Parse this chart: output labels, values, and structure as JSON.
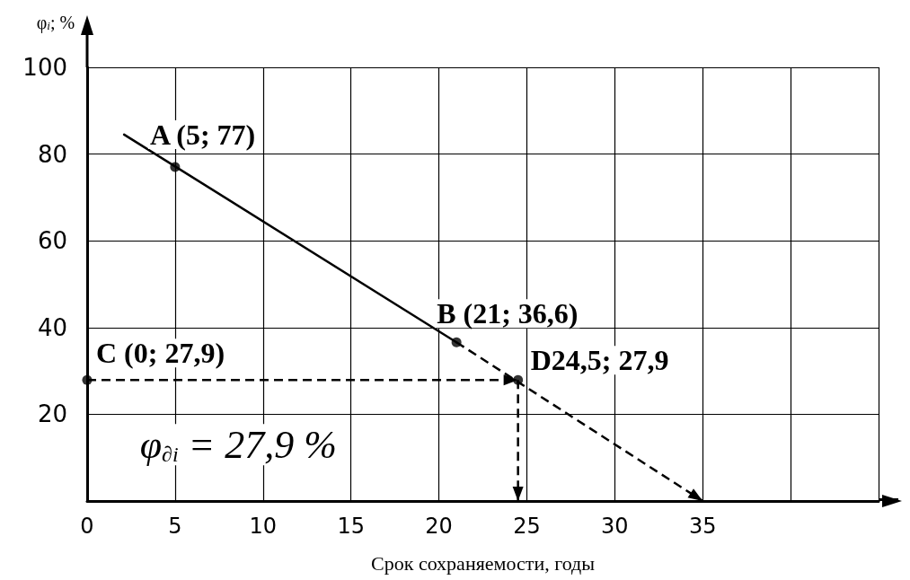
{
  "chart_data": {
    "type": "line",
    "xlabel": "Срок сохраняемости, годы",
    "ylabel": "φ$_{i}$; %",
    "xlim": [
      0,
      45
    ],
    "ylim": [
      0,
      100
    ],
    "xticks": [
      0,
      5,
      10,
      15,
      20,
      25,
      30,
      35,
      {
        "value": 40,
        "label": null
      },
      {
        "value": 45,
        "label": null
      }
    ],
    "yticks": [
      {
        "value": 0,
        "label": null
      },
      20,
      40,
      60,
      80,
      100
    ],
    "grid": true,
    "marker": "none",
    "series": [
      {
        "x": [
          2.1,
          21
        ],
        "values": [
          84.5,
          36.6
        ],
        "color": "#000000",
        "line_style": "solid"
      },
      {
        "x": [
          21,
          35
        ],
        "values": [
          36.6,
          0
        ],
        "color": "#000000",
        "line_style": "dashed"
      },
      {
        "x": [
          0,
          24.5
        ],
        "values": [
          27.9,
          27.9
        ],
        "color": "#000000",
        "line_style": "dashed"
      },
      {
        "x": [
          24.5,
          24.5
        ],
        "values": [
          27.9,
          0
        ],
        "color": "#000000",
        "line_style": "dashed"
      },
      {
        "type": "scatter",
        "x": [
          5,
          21,
          0,
          24.5
        ],
        "values": [
          77,
          36.6,
          27.9,
          27.9
        ],
        "color": "#000000",
        "marker": "circle"
      }
    ],
    "annotations": [
      {
        "text": "A (5; 77)",
        "x": 5,
        "y": 77
      },
      {
        "text": "B (21; 36,6)",
        "x": 21,
        "y": 36.6
      },
      {
        "text": "C (0; 27,9)",
        "x": 0,
        "y": 27.9
      },
      {
        "text": "D24,5; 27,9",
        "x": 24.5,
        "y": 27.9
      },
      "φ$_{∂i}$ = 27,9 %"
    ]
  }
}
